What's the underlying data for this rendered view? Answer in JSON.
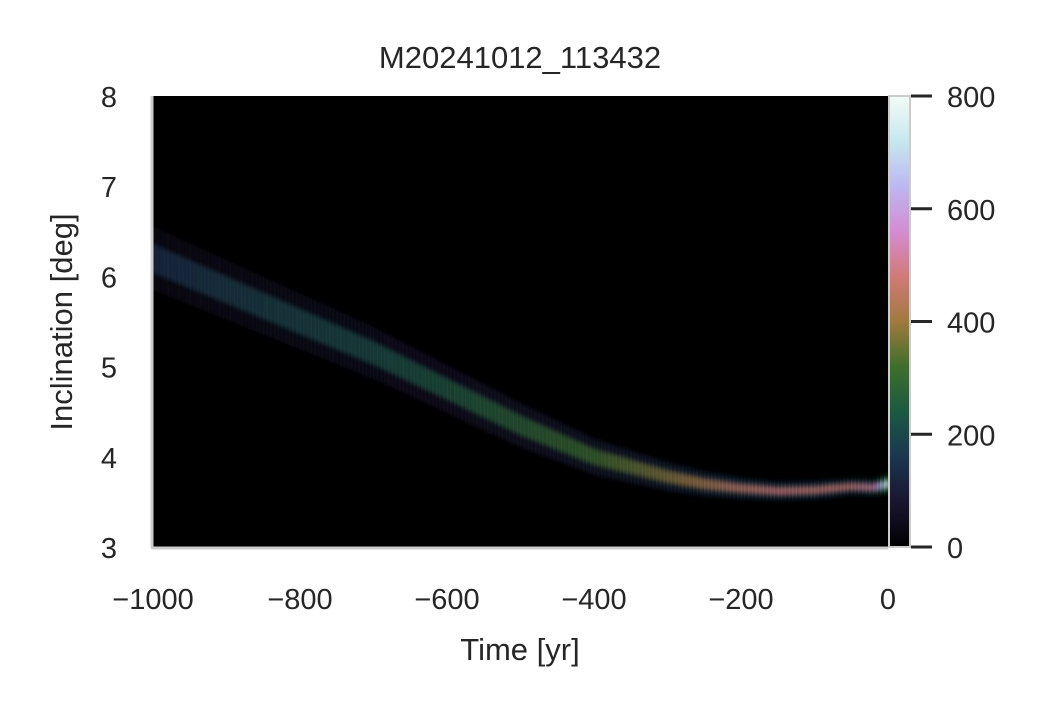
{
  "chart_data": {
    "type": "heatmap",
    "title": "M20241012_113432",
    "xlabel": "Time [yr]",
    "ylabel": "Inclination [deg]",
    "xlim": [
      -1000,
      0
    ],
    "ylim": [
      3,
      8
    ],
    "x_ticks": [
      -1000,
      -800,
      -600,
      -400,
      -200,
      0
    ],
    "x_tick_labels": [
      "−1000",
      "−800",
      "−600",
      "−400",
      "−200",
      "0"
    ],
    "y_ticks": [
      3,
      4,
      5,
      6,
      7,
      8
    ],
    "y_tick_labels": [
      "3",
      "4",
      "5",
      "6",
      "7",
      "8"
    ],
    "grid": false,
    "background_color": "#000000",
    "colormap": "cubehelix",
    "colorbar": {
      "range": [
        0,
        800
      ],
      "ticks": [
        0,
        200,
        400,
        600,
        800
      ],
      "tick_labels": [
        "0",
        "200",
        "400",
        "600",
        "800"
      ]
    },
    "ridge": {
      "time": [
        -1000,
        -900,
        -800,
        -700,
        -600,
        -500,
        -400,
        -300,
        -250,
        -200,
        -150,
        -100,
        -50,
        -20,
        0
      ],
      "inclination": [
        6.2,
        5.85,
        5.5,
        5.15,
        4.75,
        4.35,
        4.0,
        3.78,
        3.7,
        3.65,
        3.62,
        3.63,
        3.67,
        3.66,
        3.7
      ],
      "density": [
        150,
        180,
        200,
        220,
        250,
        280,
        320,
        380,
        420,
        460,
        480,
        470,
        480,
        520,
        780
      ],
      "spread_deg": [
        0.16,
        0.15,
        0.14,
        0.13,
        0.12,
        0.11,
        0.09,
        0.07,
        0.06,
        0.05,
        0.045,
        0.045,
        0.04,
        0.04,
        0.05
      ]
    }
  }
}
